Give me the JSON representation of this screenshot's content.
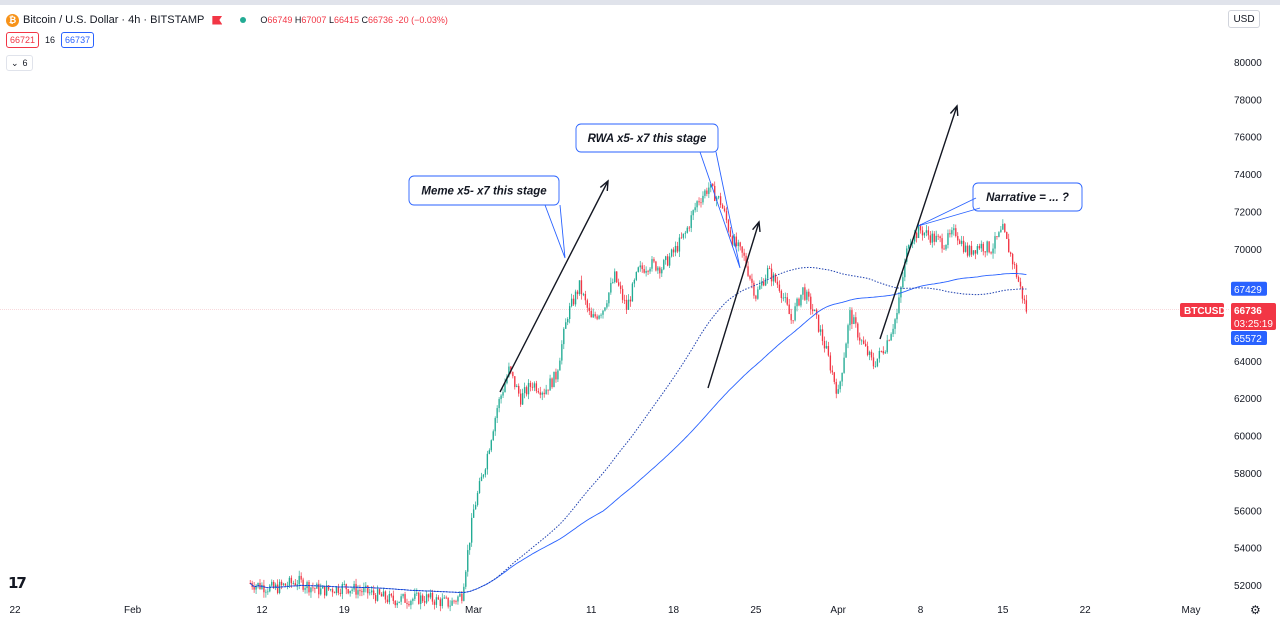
{
  "header": {
    "symbol_title": "Bitcoin / U.S. Dollar · 4h · BITSTAMP",
    "coin_icon": "bitcoin-icon",
    "ohlc": {
      "o_label": "O",
      "o": "66749",
      "h_label": "H",
      "h": "67007",
      "l_label": "L",
      "l": "66415",
      "c_label": "C",
      "c": "66736",
      "change": "-20 (−0.03%)"
    },
    "bid": "66721",
    "spread": "16",
    "ask": "66737",
    "indicators_count": "6",
    "currency": "USD"
  },
  "colors": {
    "up": "#22ab94",
    "down": "#f23645",
    "ma": "#2962ff",
    "annotation_border": "#2962ff"
  },
  "chart_data": {
    "type": "candlestick",
    "title": "Bitcoin / U.S. Dollar · 4h · BITSTAMP",
    "y_ticks": [
      52000,
      54000,
      56000,
      58000,
      60000,
      62000,
      64000,
      66000,
      68000,
      70000,
      72000,
      74000,
      76000,
      78000,
      80000
    ],
    "y_tick_labels": [
      "52000",
      "54000",
      "56000",
      "58000",
      "60000",
      "62000",
      "64000",
      "66000",
      "68000",
      "70000",
      "72000",
      "74000",
      "76000",
      "78000",
      "80000"
    ],
    "ylim": [
      50800,
      82500
    ],
    "x_tick_labels": [
      "22",
      "Feb",
      "12",
      "19",
      "Mar",
      "11",
      "18",
      "25",
      "Apr",
      "8",
      "15",
      "22",
      "May"
    ],
    "x_tick_dates": [
      "2024-01-22",
      "2024-02-01",
      "2024-02-12",
      "2024-02-19",
      "2024-03-01",
      "2024-03-11",
      "2024-03-18",
      "2024-03-25",
      "2024-04-01",
      "2024-04-08",
      "2024-04-15",
      "2024-04-22",
      "2024-05-01"
    ],
    "price_path": [
      [
        "2024-02-11",
        52100
      ],
      [
        "2024-02-13",
        51800
      ],
      [
        "2024-02-15",
        52200
      ],
      [
        "2024-02-17",
        51700
      ],
      [
        "2024-02-19",
        51900
      ],
      [
        "2024-02-21",
        51600
      ],
      [
        "2024-02-23",
        51200
      ],
      [
        "2024-02-26",
        51300
      ],
      [
        "2024-02-28",
        51000
      ],
      [
        "2024-02-29",
        51500
      ],
      [
        "2024-03-01",
        56000
      ],
      [
        "2024-03-02",
        58500
      ],
      [
        "2024-03-03",
        61500
      ],
      [
        "2024-03-04",
        63500
      ],
      [
        "2024-03-05",
        62000
      ],
      [
        "2024-03-06",
        62800
      ],
      [
        "2024-03-07",
        62400
      ],
      [
        "2024-03-08",
        63200
      ],
      [
        "2024-03-09",
        66500
      ],
      [
        "2024-03-10",
        68000
      ],
      [
        "2024-03-11",
        66200
      ],
      [
        "2024-03-12",
        66800
      ],
      [
        "2024-03-13",
        68500
      ],
      [
        "2024-03-14",
        66800
      ],
      [
        "2024-03-15",
        68800
      ],
      [
        "2024-03-16",
        69200
      ],
      [
        "2024-03-17",
        69000
      ],
      [
        "2024-03-18",
        69800
      ],
      [
        "2024-03-19",
        70800
      ],
      [
        "2024-03-20",
        72500
      ],
      [
        "2024-03-21",
        73300
      ],
      [
        "2024-03-22",
        72500
      ],
      [
        "2024-03-23",
        70500
      ],
      [
        "2024-03-24",
        69500
      ],
      [
        "2024-03-25",
        67500
      ],
      [
        "2024-03-26",
        68800
      ],
      [
        "2024-03-27",
        68000
      ],
      [
        "2024-03-28",
        66200
      ],
      [
        "2024-03-29",
        67800
      ],
      [
        "2024-03-30",
        66500
      ],
      [
        "2024-03-31",
        64500
      ],
      [
        "2024-04-01",
        62200
      ],
      [
        "2024-04-02",
        66500
      ],
      [
        "2024-04-03",
        65000
      ],
      [
        "2024-04-04",
        63800
      ],
      [
        "2024-04-05",
        64800
      ],
      [
        "2024-04-06",
        66500
      ],
      [
        "2024-04-07",
        70500
      ],
      [
        "2024-04-08",
        71000
      ],
      [
        "2024-04-09",
        70600
      ],
      [
        "2024-04-10",
        70300
      ],
      [
        "2024-04-11",
        70900
      ],
      [
        "2024-04-12",
        69800
      ],
      [
        "2024-04-13",
        70200
      ],
      [
        "2024-04-14",
        70000
      ],
      [
        "2024-04-15",
        71000
      ],
      [
        "2024-04-16",
        69000
      ],
      [
        "2024-04-17",
        66736
      ]
    ],
    "last_price": 66736,
    "ma_dotted_value": 67429,
    "ma_solid_value": 65572,
    "price_label": {
      "symbol": "BTCUSD",
      "price": "66736",
      "countdown": "03:25:19"
    },
    "ma_labels": [
      "67429",
      "65572"
    ],
    "annotations": [
      {
        "text": "Meme x5- x7 this stage"
      },
      {
        "text": "RWA x5- x7 this stage"
      },
      {
        "text": "Narrative = ... ?"
      }
    ]
  }
}
